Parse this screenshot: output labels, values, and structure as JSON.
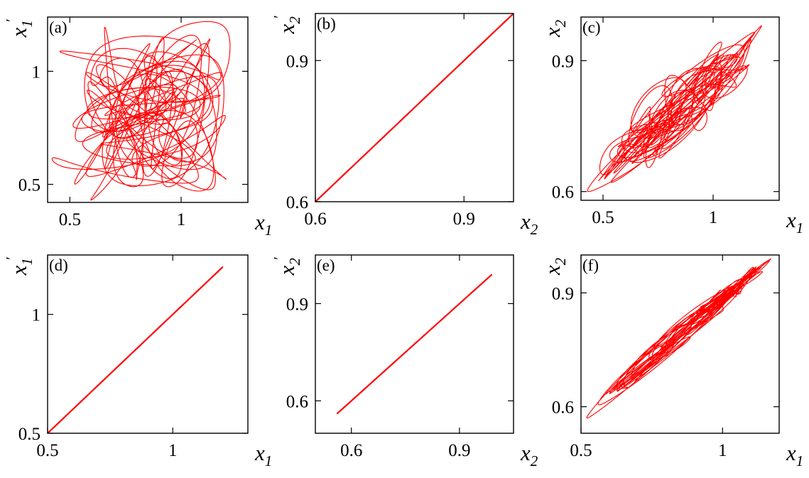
{
  "colors": {
    "trace": "#ff0000",
    "axes": "#000000"
  },
  "chart_data": [
    {
      "panel": "(a)",
      "type": "line",
      "xlabel": {
        "var": "x",
        "sub": "1",
        "prime": ""
      },
      "ylabel": {
        "var": "x",
        "sub": "1",
        "prime": "′"
      },
      "xlim": [
        0.4,
        1.3
      ],
      "ylim": [
        0.42,
        1.24
      ],
      "xticks": [
        {
          "v": 0.5,
          "t": "0.5"
        },
        {
          "v": 1.0,
          "t": "1"
        }
      ],
      "yticks": [
        {
          "v": 0.5,
          "t": "0.5"
        },
        {
          "v": 1.0,
          "t": "1"
        }
      ],
      "trajectory": {
        "kind": "chaotic",
        "x_range": [
          0.42,
          1.22
        ],
        "y_range": [
          0.43,
          1.22
        ],
        "corr": 0.15,
        "seed": 11
      },
      "grid": false
    },
    {
      "panel": "(b)",
      "type": "line",
      "xlabel": {
        "var": "x",
        "sub": "2",
        "prime": ""
      },
      "ylabel": {
        "var": "x",
        "sub": "2",
        "prime": "′"
      },
      "xlim": [
        0.6,
        1.0
      ],
      "ylim": [
        0.6,
        1.0
      ],
      "xticks": [
        {
          "v": 0.6,
          "t": "0.6"
        },
        {
          "v": 0.9,
          "t": "0.9"
        }
      ],
      "yticks": [
        {
          "v": 0.6,
          "t": "0.6"
        },
        {
          "v": 0.9,
          "t": "0.9"
        }
      ],
      "x": [
        0.6,
        1.0
      ],
      "y": [
        0.6,
        1.0
      ],
      "grid": false
    },
    {
      "panel": "(c)",
      "type": "line",
      "xlabel": {
        "var": "x",
        "sub": "1",
        "prime": ""
      },
      "ylabel": {
        "var": "x",
        "sub": "2",
        "prime": ""
      },
      "xlim": [
        0.4,
        1.3
      ],
      "ylim": [
        0.58,
        1.0
      ],
      "xticks": [
        {
          "v": 0.5,
          "t": "0.5"
        },
        {
          "v": 1.0,
          "t": "1"
        }
      ],
      "yticks": [
        {
          "v": 0.6,
          "t": "0.6"
        },
        {
          "v": 0.9,
          "t": "0.9"
        }
      ],
      "trajectory": {
        "kind": "chaotic",
        "x_range": [
          0.43,
          1.22
        ],
        "y_range": [
          0.6,
          0.98
        ],
        "corr": 0.7,
        "seed": 23
      },
      "grid": false
    },
    {
      "panel": "(d)",
      "type": "line",
      "xlabel": {
        "var": "x",
        "sub": "1",
        "prime": ""
      },
      "ylabel": {
        "var": "x",
        "sub": "1",
        "prime": "′"
      },
      "xlim": [
        0.5,
        1.3
      ],
      "ylim": [
        0.5,
        1.25
      ],
      "xticks": [
        {
          "v": 0.5,
          "t": "0.5"
        },
        {
          "v": 1.0,
          "t": "1"
        }
      ],
      "yticks": [
        {
          "v": 0.5,
          "t": "0.5"
        },
        {
          "v": 1.0,
          "t": "1"
        }
      ],
      "x": [
        0.5,
        1.2
      ],
      "y": [
        0.5,
        1.2
      ],
      "grid": false
    },
    {
      "panel": "(e)",
      "type": "line",
      "xlabel": {
        "var": "x",
        "sub": "2",
        "prime": ""
      },
      "ylabel": {
        "var": "x",
        "sub": "2",
        "prime": "′"
      },
      "xlim": [
        0.5,
        1.05
      ],
      "ylim": [
        0.5,
        1.05
      ],
      "xticks": [
        {
          "v": 0.6,
          "t": "0.6"
        },
        {
          "v": 0.9,
          "t": "0.9"
        }
      ],
      "yticks": [
        {
          "v": 0.6,
          "t": "0.6"
        },
        {
          "v": 0.9,
          "t": "0.9"
        }
      ],
      "x": [
        0.56,
        0.99
      ],
      "y": [
        0.56,
        0.99
      ],
      "grid": false
    },
    {
      "panel": "(f)",
      "type": "line",
      "xlabel": {
        "var": "x",
        "sub": "1",
        "prime": ""
      },
      "ylabel": {
        "var": "x",
        "sub": "2",
        "prime": ""
      },
      "xlim": [
        0.5,
        1.2
      ],
      "ylim": [
        0.53,
        1.0
      ],
      "xticks": [
        {
          "v": 0.5,
          "t": "0.5"
        },
        {
          "v": 1.0,
          "t": "1"
        }
      ],
      "yticks": [
        {
          "v": 0.6,
          "t": "0.6"
        },
        {
          "v": 0.9,
          "t": "0.9"
        }
      ],
      "trajectory": {
        "kind": "chaotic",
        "x_range": [
          0.52,
          1.17
        ],
        "y_range": [
          0.57,
          0.99
        ],
        "corr": 0.88,
        "seed": 37
      },
      "grid": false
    }
  ]
}
